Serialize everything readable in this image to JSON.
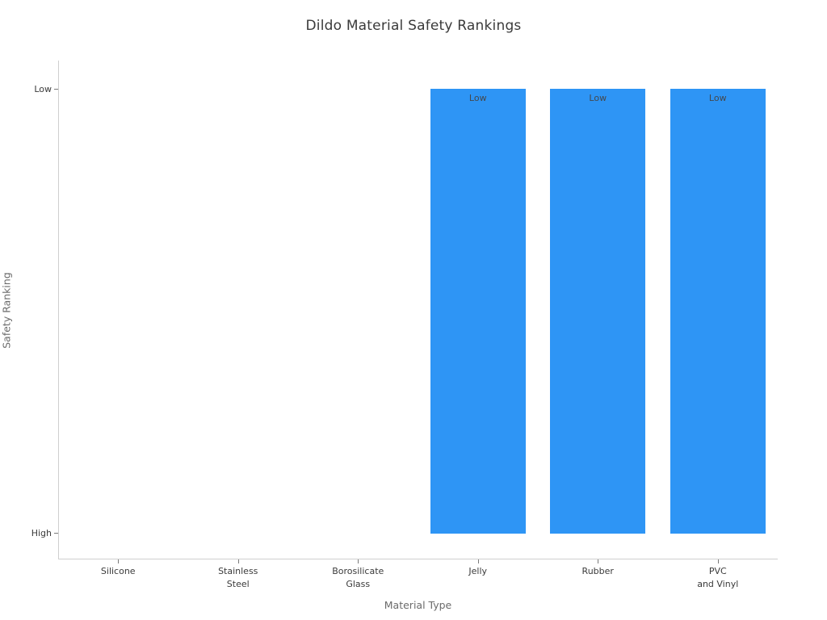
{
  "chart_data": {
    "type": "bar",
    "title": "Dildo Material Safety Rankings",
    "xlabel": "Material Type",
    "ylabel": "Safety Ranking",
    "categories": [
      "Silicone",
      "Stainless Steel",
      "Borosilicate Glass",
      "Jelly",
      "Rubber",
      "PVC and Vinyl"
    ],
    "category_label_lines": [
      [
        "Silicone"
      ],
      [
        "Stainless",
        "Steel"
      ],
      [
        "Borosilicate",
        "Glass"
      ],
      [
        "Jelly"
      ],
      [
        "Rubber"
      ],
      [
        "PVC",
        "and Vinyl"
      ]
    ],
    "values_text": [
      "High",
      "High",
      "High",
      "Low",
      "Low",
      "Low"
    ],
    "values_numeric": [
      0,
      0,
      0,
      1,
      1,
      1
    ],
    "bar_labels": [
      "",
      "",
      "",
      "Low",
      "Low",
      "Low"
    ],
    "ytick_labels": [
      "High",
      "Low"
    ],
    "ytick_values": [
      0,
      1
    ],
    "ylim": [
      -0.058,
      1.064
    ],
    "grid": false,
    "legend": "none",
    "colors": {
      "bar_fill": "#2e95f5",
      "bar_label_text": "#44484d",
      "title_text": "#3a3a3a",
      "tick_text": "#3a3a3a",
      "axis_label_text": "#6b6b6b",
      "spine": "#cfcfcf",
      "tick_mark": "#7a7a7a",
      "background": "#ffffff"
    }
  }
}
